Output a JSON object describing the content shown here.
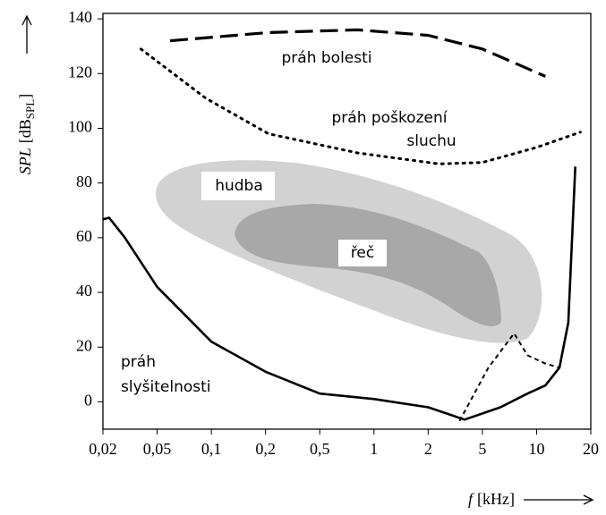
{
  "chart_data": {
    "type": "line",
    "y_label": [
      "SPL",
      "[dB",
      "SPL",
      "]"
    ],
    "x_label": [
      "f",
      "[kHz]"
    ],
    "log_x": true,
    "xlim": [
      0.02,
      20
    ],
    "xticks": [
      {
        "value": 0.02,
        "label": "0,02"
      },
      {
        "value": 0.05,
        "label": "0,05"
      },
      {
        "value": 0.1,
        "label": "0,1"
      },
      {
        "value": 0.2,
        "label": "0,2"
      },
      {
        "value": 0.5,
        "label": "0,5"
      },
      1,
      2,
      5,
      10,
      20
    ],
    "ylim": [
      -10,
      142
    ],
    "yticks": [
      0,
      20,
      40,
      60,
      80,
      100,
      120,
      140
    ],
    "series": [
      {
        "style": "dashed",
        "color": "#000000",
        "x": [
          0.059,
          0.21,
          0.81,
          2,
          5,
          11.2
        ],
        "values": [
          132,
          135,
          136,
          134,
          129,
          119
        ]
      },
      {
        "style": "dotted",
        "color": "#000000",
        "x": [
          0.038,
          0.093,
          0.21,
          0.81,
          2.4,
          5,
          10,
          17.5
        ],
        "values": [
          129,
          111,
          98,
          91,
          87,
          87.5,
          93,
          98.6
        ]
      },
      {
        "style": "solid",
        "color": "#000000",
        "x": [
          0.02,
          0.0222,
          0.029,
          0.05,
          0.1,
          0.2,
          0.5,
          1,
          2,
          3.7,
          6.3,
          8.9,
          11.2,
          13.4,
          15,
          16.4
        ],
        "values": [
          66.7,
          67.3,
          60,
          42,
          22,
          11,
          3,
          1,
          -2,
          -6.5,
          -2,
          3,
          6,
          12.5,
          29,
          86
        ]
      },
      {
        "style": "short-dashed",
        "color": "#000000",
        "x": [
          3.4,
          5.4,
          7.5,
          8.9,
          11.2,
          13.4
        ],
        "values": [
          -7,
          12.5,
          25,
          17,
          14,
          12.5
        ]
      }
    ],
    "annotations": [
      "práh bolesti",
      "práh poškození",
      "sluchu",
      "hudba",
      "řeč",
      "práh",
      "slyšitelnosti"
    ]
  }
}
